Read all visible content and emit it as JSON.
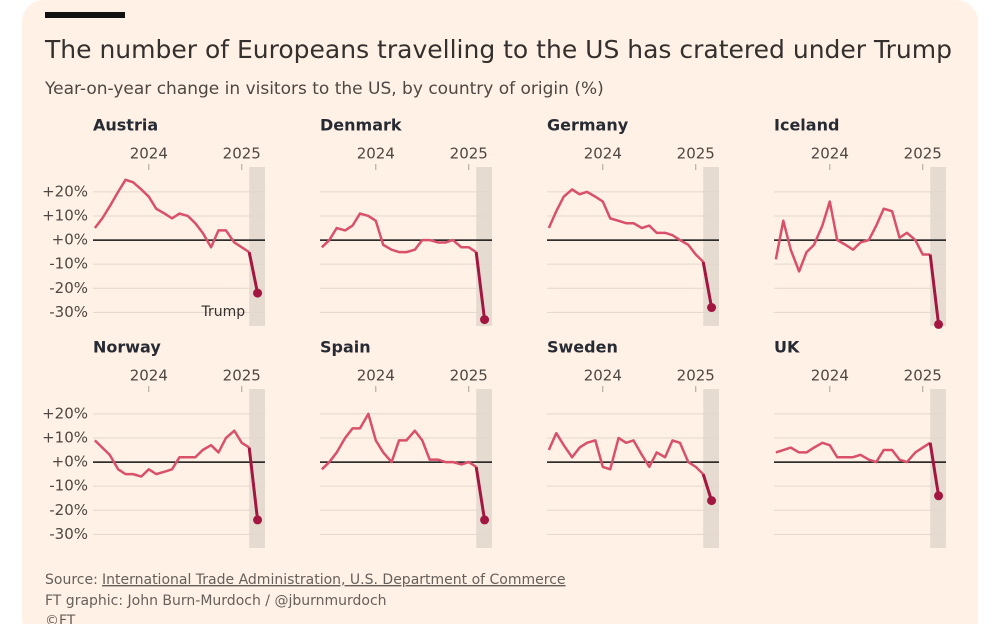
{
  "title": "The number of Europeans travelling to the US has cratered under Trump",
  "subtitle": "Year-on-year change in visitors to the US, by country of origin (%)",
  "source_label": "Source:",
  "source": "International Trade Administration, U.S. Department of Commerce",
  "credit": "FT graphic: John Burn-Murdoch / @jburnmurdoch",
  "copyright": "©FT",
  "chart_data": [
    {
      "type": "line",
      "title": "Austria",
      "annotation": "Trump",
      "x": [
        2023.42,
        2023.5,
        2023.58,
        2023.67,
        2023.75,
        2023.83,
        2023.92,
        2024.0,
        2024.08,
        2024.17,
        2024.25,
        2024.33,
        2024.42,
        2024.5,
        2024.58,
        2024.67,
        2024.75,
        2024.83,
        2024.92,
        2025.0,
        2025.08,
        2025.17
      ],
      "values": [
        5,
        9,
        14,
        20,
        25,
        24,
        21,
        18,
        13,
        11,
        9,
        11,
        10,
        7,
        3,
        -3,
        4,
        4,
        -1,
        -3,
        -5,
        -22
      ],
      "color": "#d9506a",
      "highlight_color": "#a3163f",
      "shade": [
        2025.08,
        2025.25
      ],
      "xlim": [
        2023.4,
        2025.25
      ],
      "xticks": [
        2024,
        2025
      ],
      "ylim": [
        -34,
        27
      ],
      "yticks": [
        {
          "value": 20,
          "label": "+20%"
        },
        {
          "value": 10,
          "label": "+10%"
        },
        {
          "value": 0,
          "label": "+0%"
        },
        {
          "value": -10,
          "label": "-10%"
        },
        {
          "value": -20,
          "label": "-20%"
        },
        {
          "value": -30,
          "label": "-30%"
        }
      ],
      "grid": true
    },
    {
      "type": "line",
      "title": "Denmark",
      "x": [
        2023.42,
        2023.5,
        2023.58,
        2023.67,
        2023.75,
        2023.83,
        2023.92,
        2024.0,
        2024.08,
        2024.17,
        2024.25,
        2024.33,
        2024.42,
        2024.5,
        2024.58,
        2024.67,
        2024.75,
        2024.83,
        2024.92,
        2025.0,
        2025.08,
        2025.17
      ],
      "values": [
        -3,
        0,
        5,
        4,
        6,
        11,
        10,
        8,
        -2,
        -4,
        -5,
        -5,
        -4,
        0,
        0,
        -1,
        -1,
        0,
        -3,
        -3,
        -5,
        -33
      ],
      "color": "#d9506a",
      "highlight_color": "#a3163f",
      "shade": [
        2025.08,
        2025.25
      ],
      "xlim": [
        2023.4,
        2025.25
      ],
      "xticks": [
        2024,
        2025
      ],
      "ylim": [
        -34,
        27
      ],
      "yticks": [
        20,
        10,
        0,
        -10,
        -20,
        -30
      ],
      "grid": true
    },
    {
      "type": "line",
      "title": "Germany",
      "x": [
        2023.42,
        2023.5,
        2023.58,
        2023.67,
        2023.75,
        2023.83,
        2023.92,
        2024.0,
        2024.08,
        2024.17,
        2024.25,
        2024.33,
        2024.42,
        2024.5,
        2024.58,
        2024.67,
        2024.75,
        2024.83,
        2024.92,
        2025.0,
        2025.08,
        2025.17
      ],
      "values": [
        5,
        12,
        18,
        21,
        19,
        20,
        18,
        16,
        9,
        8,
        7,
        7,
        5,
        6,
        3,
        3,
        2,
        0,
        -2,
        -6,
        -9,
        -28
      ],
      "color": "#d9506a",
      "highlight_color": "#a3163f",
      "shade": [
        2025.08,
        2025.25
      ],
      "xlim": [
        2023.4,
        2025.25
      ],
      "xticks": [
        2024,
        2025
      ],
      "ylim": [
        -34,
        27
      ],
      "yticks": [
        20,
        10,
        0,
        -10,
        -20,
        -30
      ],
      "grid": true
    },
    {
      "type": "line",
      "title": "Iceland",
      "x": [
        2023.42,
        2023.5,
        2023.58,
        2023.67,
        2023.75,
        2023.83,
        2023.92,
        2024.0,
        2024.08,
        2024.17,
        2024.25,
        2024.33,
        2024.42,
        2024.5,
        2024.58,
        2024.67,
        2024.75,
        2024.83,
        2024.92,
        2025.0,
        2025.08,
        2025.17
      ],
      "values": [
        -8,
        8,
        -4,
        -13,
        -5,
        -2,
        6,
        16,
        0,
        -2,
        -4,
        -1,
        0,
        6,
        13,
        12,
        1,
        3,
        0,
        -6,
        -6,
        -35
      ],
      "color": "#d9506a",
      "highlight_color": "#a3163f",
      "shade": [
        2025.08,
        2025.25
      ],
      "xlim": [
        2023.4,
        2025.25
      ],
      "xticks": [
        2024,
        2025
      ],
      "ylim": [
        -34,
        27
      ],
      "yticks": [
        20,
        10,
        0,
        -10,
        -20,
        -30
      ],
      "grid": true
    },
    {
      "type": "line",
      "title": "Norway",
      "x": [
        2023.42,
        2023.5,
        2023.58,
        2023.67,
        2023.75,
        2023.83,
        2023.92,
        2024.0,
        2024.08,
        2024.17,
        2024.25,
        2024.33,
        2024.42,
        2024.5,
        2024.58,
        2024.67,
        2024.75,
        2024.83,
        2024.92,
        2025.0,
        2025.08,
        2025.17
      ],
      "values": [
        9,
        6,
        3,
        -3,
        -5,
        -5,
        -6,
        -3,
        -5,
        -4,
        -3,
        2,
        2,
        2,
        5,
        7,
        4,
        10,
        13,
        8,
        6,
        -24
      ],
      "color": "#d9506a",
      "highlight_color": "#a3163f",
      "shade": [
        2025.08,
        2025.25
      ],
      "xlim": [
        2023.4,
        2025.25
      ],
      "xticks": [
        2024,
        2025
      ],
      "ylim": [
        -34,
        27
      ],
      "yticks": [
        {
          "value": 20,
          "label": "+20%"
        },
        {
          "value": 10,
          "label": "+10%"
        },
        {
          "value": 0,
          "label": "+0%"
        },
        {
          "value": -10,
          "label": "-10%"
        },
        {
          "value": -20,
          "label": "-20%"
        },
        {
          "value": -30,
          "label": "-30%"
        }
      ],
      "grid": true
    },
    {
      "type": "line",
      "title": "Spain",
      "x": [
        2023.42,
        2023.5,
        2023.58,
        2023.67,
        2023.75,
        2023.83,
        2023.92,
        2024.0,
        2024.08,
        2024.17,
        2024.25,
        2024.33,
        2024.42,
        2024.5,
        2024.58,
        2024.67,
        2024.75,
        2024.83,
        2024.92,
        2025.0,
        2025.08,
        2025.17
      ],
      "values": [
        -3,
        0,
        4,
        10,
        14,
        14,
        20,
        9,
        4,
        0,
        9,
        9,
        13,
        9,
        1,
        1,
        0,
        0,
        -1,
        0,
        -2,
        -24
      ],
      "color": "#d9506a",
      "highlight_color": "#a3163f",
      "shade": [
        2025.08,
        2025.25
      ],
      "xlim": [
        2023.4,
        2025.25
      ],
      "xticks": [
        2024,
        2025
      ],
      "ylim": [
        -34,
        27
      ],
      "yticks": [
        20,
        10,
        0,
        -10,
        -20,
        -30
      ],
      "grid": true
    },
    {
      "type": "line",
      "title": "Sweden",
      "x": [
        2023.42,
        2023.5,
        2023.58,
        2023.67,
        2023.75,
        2023.83,
        2023.92,
        2024.0,
        2024.08,
        2024.17,
        2024.25,
        2024.33,
        2024.42,
        2024.5,
        2024.58,
        2024.67,
        2024.75,
        2024.83,
        2024.92,
        2025.0,
        2025.08,
        2025.17
      ],
      "values": [
        5,
        12,
        7,
        2,
        6,
        8,
        9,
        -2,
        -3,
        10,
        8,
        9,
        3,
        -2,
        4,
        2,
        9,
        8,
        0,
        -2,
        -5,
        -16
      ],
      "color": "#d9506a",
      "highlight_color": "#a3163f",
      "shade": [
        2025.08,
        2025.25
      ],
      "xlim": [
        2023.4,
        2025.25
      ],
      "xticks": [
        2024,
        2025
      ],
      "ylim": [
        -34,
        27
      ],
      "yticks": [
        20,
        10,
        0,
        -10,
        -20,
        -30
      ],
      "grid": true
    },
    {
      "type": "line",
      "title": "UK",
      "x": [
        2023.42,
        2023.5,
        2023.58,
        2023.67,
        2023.75,
        2023.83,
        2023.92,
        2024.0,
        2024.08,
        2024.17,
        2024.25,
        2024.33,
        2024.42,
        2024.5,
        2024.58,
        2024.67,
        2024.75,
        2024.83,
        2024.92,
        2025.0,
        2025.08,
        2025.17
      ],
      "values": [
        4,
        5,
        6,
        4,
        4,
        6,
        8,
        7,
        2,
        2,
        2,
        3,
        1,
        0,
        5,
        5,
        1,
        0,
        4,
        6,
        8,
        -14
      ],
      "color": "#d9506a",
      "highlight_color": "#a3163f",
      "shade": [
        2025.08,
        2025.25
      ],
      "xlim": [
        2023.4,
        2025.25
      ],
      "xticks": [
        2024,
        2025
      ],
      "ylim": [
        -34,
        27
      ],
      "yticks": [
        20,
        10,
        0,
        -10,
        -20,
        -30
      ],
      "grid": true
    }
  ]
}
